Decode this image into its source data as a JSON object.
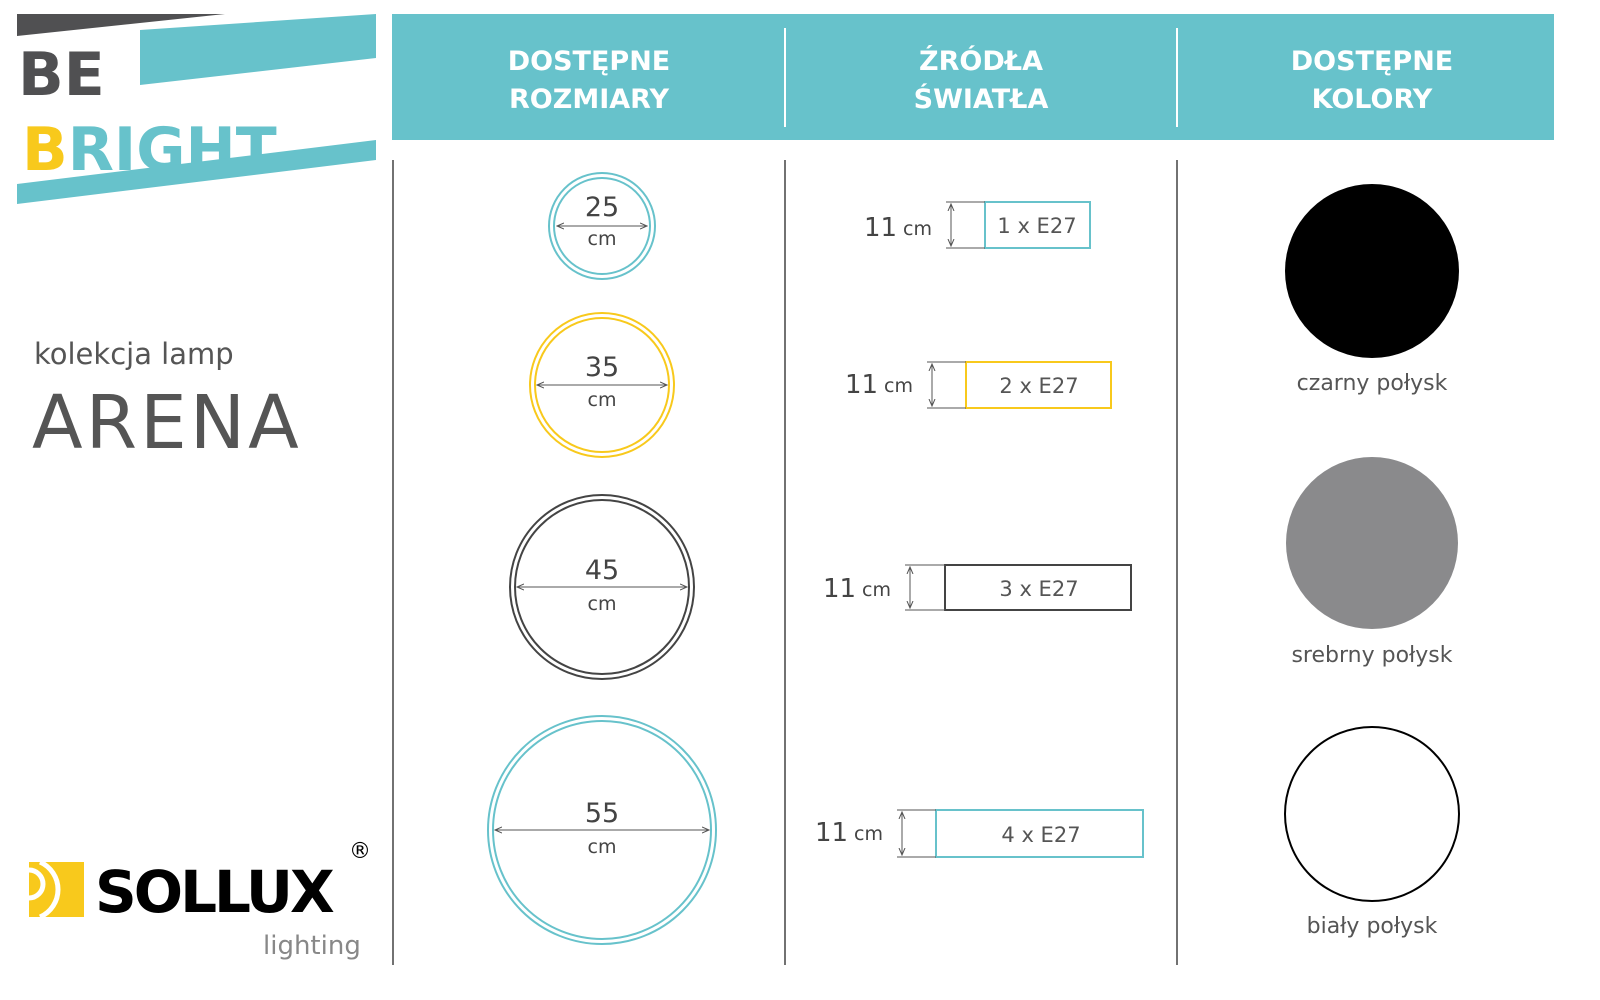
{
  "brand": {
    "logo_text_1": "BE",
    "logo_text_2": "B",
    "logo_text_3": "RIGHT",
    "colors": {
      "teal": "#67c2cb",
      "yellow": "#f8c91c",
      "dark": "#505052"
    }
  },
  "collection": {
    "subtitle": "kolekcja lamp",
    "name": "ARENA"
  },
  "header": {
    "columns": [
      {
        "line1": "DOSTĘPNE",
        "line2": "ROZMIARY"
      },
      {
        "line1": "ŹRÓDŁA",
        "line2": "ŚWIATŁA"
      },
      {
        "line1": "DOSTĘPNE",
        "line2": "KOLORY"
      }
    ]
  },
  "sizes": [
    {
      "value": "25",
      "unit": "cm",
      "color": "#67c2cb"
    },
    {
      "value": "35",
      "unit": "cm",
      "color": "#f8c91c"
    },
    {
      "value": "45",
      "unit": "cm",
      "color": "#444444"
    },
    {
      "value": "55",
      "unit": "cm",
      "color": "#67c2cb"
    }
  ],
  "light_sources": [
    {
      "height": "11",
      "unit": "cm",
      "label": "1 x E27",
      "color": "#67c2cb"
    },
    {
      "height": "11",
      "unit": "cm",
      "label": "2 x E27",
      "color": "#f8c91c"
    },
    {
      "height": "11",
      "unit": "cm",
      "label": "3 x E27",
      "color": "#444444"
    },
    {
      "height": "11",
      "unit": "cm",
      "label": "4 x E27",
      "color": "#67c2cb"
    }
  ],
  "colors": [
    {
      "label": "czarny połysk",
      "swatch": "#000000"
    },
    {
      "label": "srebrny połysk",
      "swatch": "#8a8a8c"
    },
    {
      "label": "biały połysk",
      "swatch": "#ffffff"
    }
  ],
  "footer_logo": {
    "name": "SOLLUX",
    "tagline": "lighting",
    "mark": "®"
  }
}
